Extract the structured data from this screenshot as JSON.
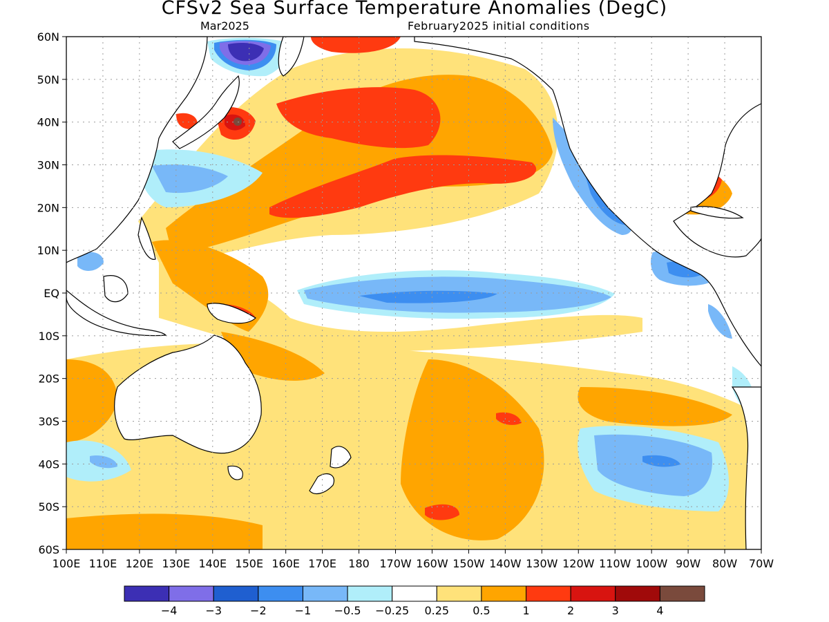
{
  "title": "CFSv2 Sea Surface Temperature Anomalies (DegC)",
  "subtitle_left": "Mar2025",
  "subtitle_right": "February2025 initial conditions",
  "lat_labels": [
    "60N",
    "50N",
    "40N",
    "30N",
    "20N",
    "10N",
    "EQ",
    "10S",
    "20S",
    "30S",
    "40S",
    "50S",
    "60S"
  ],
  "lon_labels": [
    "100E",
    "110E",
    "120E",
    "130E",
    "140E",
    "150E",
    "160E",
    "170E",
    "180",
    "170W",
    "160W",
    "150W",
    "140W",
    "130W",
    "120W",
    "110W",
    "100W",
    "90W",
    "80W",
    "70W"
  ],
  "colorbar": {
    "colors": [
      "#3c2fb4",
      "#7f6ee8",
      "#1f5fd0",
      "#3d8ef0",
      "#78b8f8",
      "#b0eefa",
      "#ffffff",
      "#ffe27a",
      "#ffa500",
      "#ff3a10",
      "#d81410",
      "#a00a0a",
      "#7a4a3c"
    ],
    "labels": [
      "−4",
      "−3",
      "−2",
      "−1",
      "−0.5",
      "−0.25",
      "0.25",
      "0.5",
      "1",
      "2",
      "3",
      "4"
    ]
  },
  "palette": {
    "blue_light": "#b0eefa",
    "blue_mid": "#78b8f8",
    "blue": "#3d8ef0",
    "blue_deep": "#1f5fd0",
    "purple": "#3c2fb4",
    "yellow": "#ffe27a",
    "orange": "#ffa500",
    "red": "#ff3a10",
    "red_dark": "#d81410",
    "brown": "#7a4a3c"
  }
}
